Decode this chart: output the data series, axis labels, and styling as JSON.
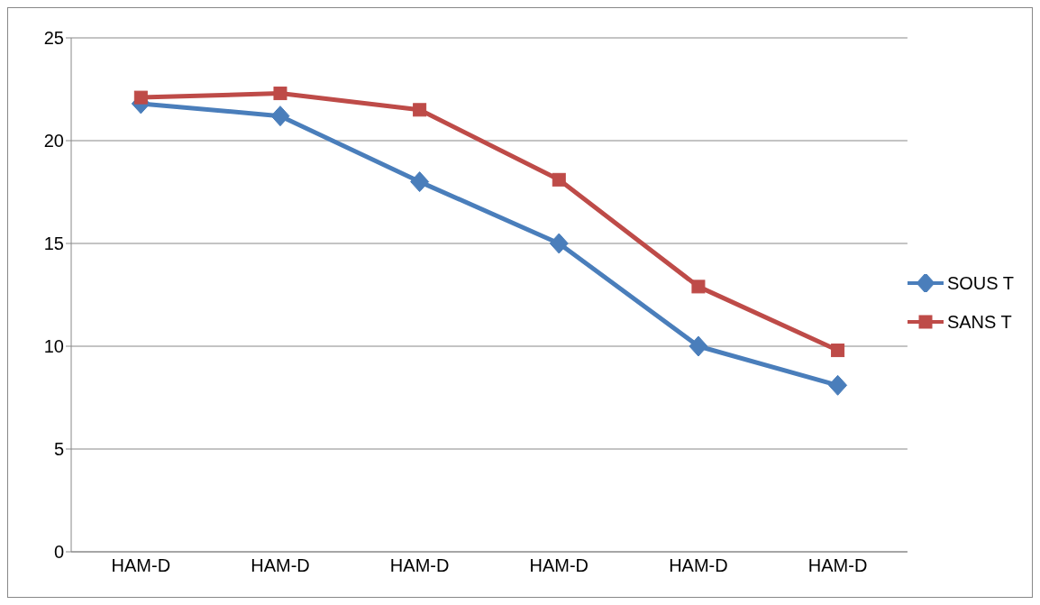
{
  "chart_data": {
    "type": "line",
    "categories": [
      "HAM-D",
      "HAM-D",
      "HAM-D",
      "HAM-D",
      "HAM-D",
      "HAM-D"
    ],
    "series": [
      {
        "name": "SOUS T",
        "color": "#4a7ebb",
        "marker": "diamond",
        "values": [
          21.8,
          21.2,
          18.0,
          15.0,
          10.0,
          8.1
        ]
      },
      {
        "name": "SANS T",
        "color": "#be4b48",
        "marker": "square",
        "values": [
          22.1,
          22.3,
          21.5,
          18.1,
          12.9,
          9.8
        ]
      }
    ],
    "ylim": [
      0,
      25
    ],
    "yticks": [
      0,
      5,
      10,
      15,
      20,
      25
    ],
    "grid": "y",
    "legend": "right"
  }
}
